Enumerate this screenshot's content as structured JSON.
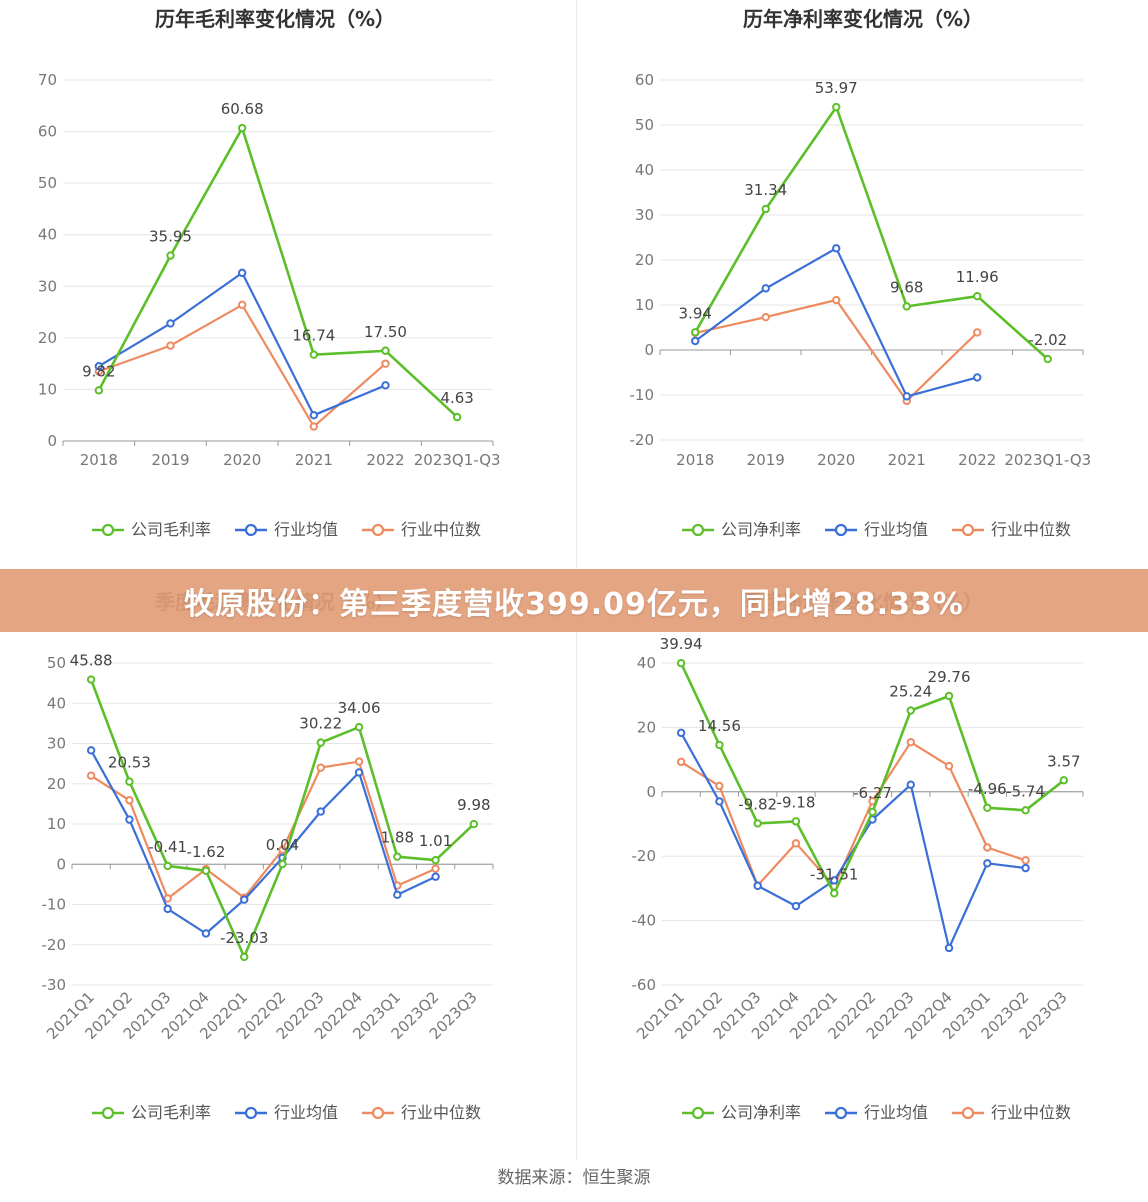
{
  "banner": {
    "headline": "牧原股份：第三季度营收399.09亿元，同比增28.33%"
  },
  "source": "数据来源：恒生聚源",
  "colors": {
    "company": "#5cbf2a",
    "industry_avg": "#3a6fd8",
    "industry_median": "#ee8a5f"
  },
  "chart_data": [
    {
      "type": "line",
      "title": "历年毛利率变化情况（%）",
      "categories": [
        "2018",
        "2019",
        "2020",
        "2021",
        "2022",
        "2023Q1-Q3"
      ],
      "ylim": [
        0,
        70
      ],
      "yticks": [
        0,
        10,
        20,
        30,
        40,
        50,
        60,
        70
      ],
      "grid": true,
      "legend": "bottom",
      "series": [
        {
          "name": "公司毛利率",
          "values": [
            9.82,
            35.95,
            60.68,
            16.74,
            17.5,
            4.63
          ],
          "labels": [
            "9.82",
            "35.95",
            "60.68",
            "16.74",
            "17.50",
            "4.63"
          ]
        },
        {
          "name": "行业均值",
          "values": [
            14.5,
            22.8,
            32.6,
            5.0,
            10.8,
            null
          ]
        },
        {
          "name": "行业中位数",
          "values": [
            13.5,
            18.5,
            26.4,
            2.8,
            15.0,
            null
          ]
        }
      ]
    },
    {
      "type": "line",
      "title": "历年净利率变化情况（%）",
      "categories": [
        "2018",
        "2019",
        "2020",
        "2021",
        "2022",
        "2023Q1-Q3"
      ],
      "ylim": [
        -20,
        60
      ],
      "yticks": [
        -20,
        -10,
        0,
        10,
        20,
        30,
        40,
        50,
        60
      ],
      "grid": true,
      "legend": "bottom",
      "series": [
        {
          "name": "公司净利率",
          "values": [
            3.94,
            31.34,
            53.97,
            9.68,
            11.96,
            -2.02
          ],
          "labels": [
            "3.94",
            "31.34",
            "53.97",
            "9.68",
            "11.96",
            "-2.02"
          ]
        },
        {
          "name": "行业均值",
          "values": [
            2.0,
            13.7,
            22.6,
            -10.3,
            -6.1,
            null
          ]
        },
        {
          "name": "行业中位数",
          "values": [
            3.8,
            7.3,
            11.1,
            -11.3,
            3.9,
            null
          ]
        }
      ]
    },
    {
      "type": "line",
      "title": "季度毛利率变化情况（%）",
      "categories": [
        "2021Q1",
        "2021Q2",
        "2021Q3",
        "2021Q4",
        "2022Q1",
        "2022Q2",
        "2022Q3",
        "2022Q4",
        "2023Q1",
        "2023Q2",
        "2023Q3"
      ],
      "ylim": [
        -30,
        50
      ],
      "yticks": [
        -30,
        -20,
        -10,
        0,
        10,
        20,
        30,
        40,
        50
      ],
      "grid": true,
      "legend": "bottom",
      "series": [
        {
          "name": "公司毛利率",
          "values": [
            45.88,
            20.53,
            -0.41,
            -1.62,
            -23.03,
            0.04,
            30.22,
            34.06,
            1.88,
            1.01,
            9.98
          ],
          "labels": [
            "45.88",
            "20.53",
            "-0.41",
            "-1.62",
            "-23.03",
            "0.04",
            "30.22",
            "34.06",
            "1.88",
            "1.01",
            "9.98"
          ]
        },
        {
          "name": "行业均值",
          "values": [
            28.3,
            11.1,
            -11.1,
            -17.2,
            -8.8,
            1.6,
            13.1,
            22.8,
            -7.6,
            -3.1,
            null
          ]
        },
        {
          "name": "行业中位数",
          "values": [
            22.0,
            15.9,
            -8.5,
            -1.2,
            -8.3,
            3.6,
            24.0,
            25.5,
            -5.3,
            -1.1,
            null
          ]
        }
      ]
    },
    {
      "type": "line",
      "title": "季度净利率变化情况（%）",
      "categories": [
        "2021Q1",
        "2021Q2",
        "2021Q3",
        "2021Q4",
        "2022Q1",
        "2022Q2",
        "2022Q3",
        "2022Q4",
        "2023Q1",
        "2023Q2",
        "2023Q3"
      ],
      "ylim": [
        -60,
        40
      ],
      "yticks": [
        -60,
        -40,
        -20,
        0,
        20,
        40
      ],
      "grid": true,
      "legend": "bottom",
      "series": [
        {
          "name": "公司净利率",
          "values": [
            39.94,
            14.56,
            -9.82,
            -9.18,
            -31.51,
            -6.27,
            25.24,
            29.76,
            -4.96,
            -5.74,
            3.57
          ],
          "labels": [
            "39.94",
            "14.56",
            "-9.82",
            "-9.18",
            "-31.51",
            "-6.27",
            "25.24",
            "29.76",
            "-4.96",
            "-5.74",
            "3.57"
          ]
        },
        {
          "name": "行业均值",
          "values": [
            18.3,
            -3.0,
            -29.2,
            -35.5,
            -27.5,
            -8.6,
            2.2,
            -48.5,
            -22.2,
            -23.7,
            null
          ]
        },
        {
          "name": "行业中位数",
          "values": [
            9.3,
            1.8,
            -29.1,
            -16.0,
            -29.3,
            -2.9,
            15.4,
            8.0,
            -17.3,
            -21.3,
            null
          ]
        }
      ]
    }
  ]
}
